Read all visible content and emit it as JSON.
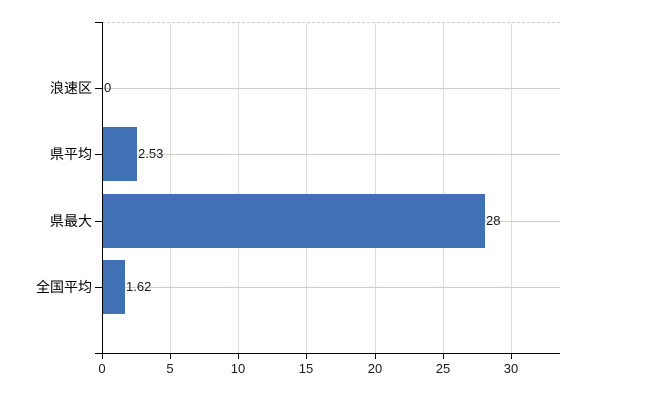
{
  "chart_data": {
    "type": "bar",
    "orientation": "horizontal",
    "title": "",
    "xlabel": "",
    "ylabel": "",
    "categories": [
      "浪速区",
      "県平均",
      "県最大",
      "全国平均"
    ],
    "values": [
      0,
      2.53,
      28,
      1.62
    ],
    "value_labels": [
      "0",
      "2.53",
      "28",
      "1.62"
    ],
    "x_ticks": [
      0,
      5,
      10,
      15,
      20,
      25,
      30
    ],
    "x_tick_labels": [
      "0",
      "5",
      "10",
      "15",
      "20",
      "25",
      "30"
    ],
    "xlim": [
      0,
      33.6
    ],
    "grid": true,
    "legend": false,
    "bar_color": "#4170b4"
  },
  "colors": {
    "background": "#ffffff",
    "bar": "#4170b4",
    "axis": "#000000",
    "vertical_grid": "#dcdcdc",
    "horizontal_grid": "#c8d0c8",
    "top_border_dashed": "#cccccc",
    "text": "#1a1a1a"
  }
}
